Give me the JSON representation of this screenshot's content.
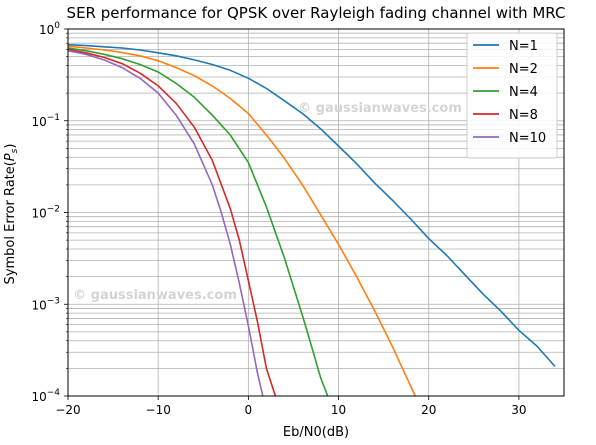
{
  "chart_data": {
    "type": "line",
    "title": "SER performance for QPSK over Rayleigh fading channel with MRC",
    "xlabel": "Eb/N0(dB)",
    "ylabel": "Symbol Error Rate(P_s)",
    "ylabel_main": "Symbol Error Rate(",
    "ylabel_symbol": "P",
    "ylabel_subscript": "s",
    "ylabel_close": ")",
    "xlim": [
      -20,
      35
    ],
    "ylim": [
      0.0001,
      1
    ],
    "yscale": "log",
    "grid": "on, major and minor",
    "legend_position": "top-right",
    "x_ticks": [
      {
        "value": -20,
        "label": "−20"
      },
      {
        "value": -10,
        "label": "−10"
      },
      {
        "value": 0,
        "label": "0"
      },
      {
        "value": 10,
        "label": "10"
      },
      {
        "value": 20,
        "label": "20"
      },
      {
        "value": 30,
        "label": "30"
      }
    ],
    "y_ticks": [
      {
        "value": 1,
        "base": "10",
        "exp": "0"
      },
      {
        "value": 0.1,
        "base": "10",
        "exp": "−1"
      },
      {
        "value": 0.01,
        "base": "10",
        "exp": "−2"
      },
      {
        "value": 0.001,
        "base": "10",
        "exp": "−3"
      },
      {
        "value": 0.0001,
        "base": "10",
        "exp": "−4"
      }
    ],
    "watermarks": [
      "© gaussianwaves.com",
      "© gaussianwaves.com"
    ],
    "series": [
      {
        "name": "N=1",
        "color": "#1f77b4",
        "x": [
          -20,
          -18,
          -16,
          -14,
          -12,
          -10,
          -8,
          -6,
          -4,
          -2,
          0,
          2,
          4,
          6,
          8,
          10,
          12,
          14,
          16,
          18,
          20,
          22,
          24,
          26,
          28,
          30,
          32,
          34
        ],
        "y": [
          0.675,
          0.66,
          0.64,
          0.62,
          0.59,
          0.55,
          0.51,
          0.46,
          0.41,
          0.355,
          0.29,
          0.225,
          0.165,
          0.12,
          0.082,
          0.053,
          0.034,
          0.021,
          0.0135,
          0.0085,
          0.0052,
          0.0034,
          0.0021,
          0.0013,
          0.00084,
          0.00052,
          0.00035,
          0.00021
        ]
      },
      {
        "name": "N=2",
        "color": "#ff7f0e",
        "x": [
          -20,
          -18,
          -16,
          -14,
          -12,
          -10,
          -8,
          -6,
          -4,
          -2,
          0,
          2,
          4,
          6,
          8,
          10,
          12,
          14,
          16,
          18.5
        ],
        "y": [
          0.65,
          0.62,
          0.59,
          0.555,
          0.51,
          0.45,
          0.38,
          0.31,
          0.24,
          0.175,
          0.12,
          0.07,
          0.039,
          0.02,
          0.0095,
          0.0045,
          0.002,
          0.00085,
          0.00034,
          0.0001
        ]
      },
      {
        "name": "N=4",
        "color": "#2ca02c",
        "x": [
          -20,
          -18,
          -16,
          -14,
          -12,
          -10,
          -8,
          -6,
          -4,
          -2,
          0,
          2,
          4,
          6,
          7,
          8,
          8.8
        ],
        "y": [
          0.62,
          0.58,
          0.53,
          0.475,
          0.41,
          0.34,
          0.255,
          0.18,
          0.115,
          0.07,
          0.035,
          0.0115,
          0.0032,
          0.00075,
          0.00035,
          0.00016,
          0.0001
        ]
      },
      {
        "name": "N=8",
        "color": "#d62728",
        "x": [
          -20,
          -18,
          -16,
          -14,
          -12,
          -10,
          -8,
          -6,
          -4,
          -2,
          -1,
          0,
          1,
          2,
          3
        ],
        "y": [
          0.6,
          0.55,
          0.49,
          0.42,
          0.33,
          0.24,
          0.155,
          0.085,
          0.037,
          0.011,
          0.005,
          0.0018,
          0.00065,
          0.0002,
          0.0001
        ]
      },
      {
        "name": "N=10",
        "color": "#9467bd",
        "x": [
          -20,
          -18,
          -16,
          -14,
          -12,
          -10,
          -8,
          -6,
          -4,
          -3,
          -2,
          -1,
          0,
          1,
          1.6
        ],
        "y": [
          0.58,
          0.53,
          0.46,
          0.38,
          0.29,
          0.2,
          0.115,
          0.056,
          0.02,
          0.01,
          0.0045,
          0.0017,
          0.00058,
          0.00018,
          0.0001
        ]
      }
    ]
  }
}
